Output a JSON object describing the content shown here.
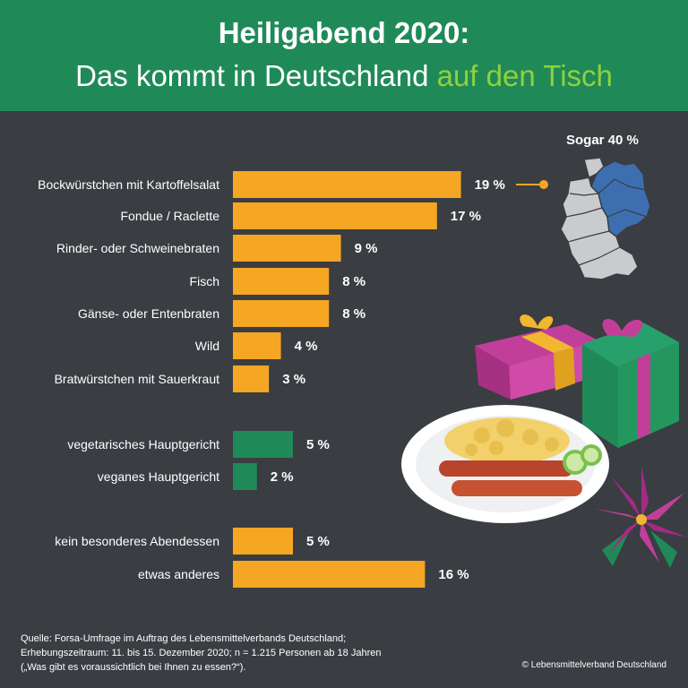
{
  "header": {
    "title_line1": "Heiligabend 2020:",
    "title_line2_main": "Das kommt in Deutschland ",
    "title_line2_highlight": "auf den Tisch"
  },
  "map_note": "Sogar 40 %",
  "colors": {
    "header": "#1f8a58",
    "background": "#3a3d42",
    "bar_orange": "#f5a623",
    "bar_green": "#1f8a58",
    "highlight_text": "#8fd13f"
  },
  "chart_data": {
    "type": "bar",
    "orientation": "horizontal",
    "unit": "%",
    "categories": [
      "Bockwürstchen mit Kartoffelsalat",
      "Fondue / Raclette",
      "Rinder- oder Schweinebraten",
      "Fisch",
      "Gänse- oder Entenbraten",
      "Wild",
      "Bratwürstchen mit Sauerkraut",
      "vegetarisches Hauptgericht",
      "veganes Hauptgericht",
      "kein besonderes Abendessen",
      "etwas anderes"
    ],
    "values": [
      19,
      17,
      9,
      8,
      8,
      4,
      3,
      5,
      2,
      5,
      16
    ],
    "value_labels": [
      "19 %",
      "17 %",
      "9 %",
      "8 %",
      "8 %",
      "4 %",
      "3 %",
      "5 %",
      "2 %",
      "5 %",
      "16 %"
    ],
    "groups": [
      "meat",
      "meat",
      "meat",
      "meat",
      "meat",
      "meat",
      "meat",
      "vegetarian",
      "vegetarian",
      "other",
      "other"
    ]
  },
  "footer": {
    "source_line1": "Quelle: Forsa-Umfrage im Auftrag des Lebensmittelverbands Deutschland;",
    "source_line2": "Erhebungszeitraum: 11. bis 15. Dezember 2020; n = 1.215 Personen ab 18 Jahren",
    "source_line3": "(„Was gibt es voraussichtlich bei Ihnen zu essen?“).",
    "copyright": "© Lebensmittelverband Deutschland"
  }
}
